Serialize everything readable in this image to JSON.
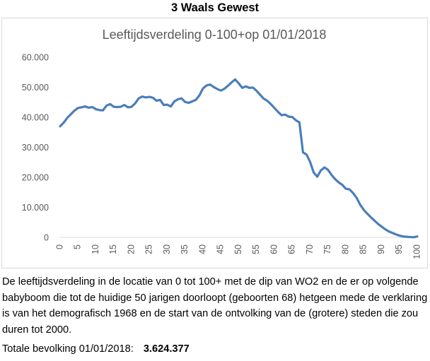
{
  "heading": "3 Waals Gewest",
  "caption": "De leeftijdsverdeling in de locatie van 0 tot 100+ met de dip van WO2 en de er op volgende babyboom die tot de huidige 50 jarigen doorloopt (geboorten 68) hetgeen mede de verklaring is van het demografisch 1968 en de start van de ontvolking van de (grotere) steden die zou duren tot 2000.",
  "total": {
    "label": "Totale bevolking 01/01/2018:",
    "value": "3.624.377"
  },
  "colors": {
    "line": "#4a7ebb",
    "axis_text": "#595959",
    "title_text": "#595959",
    "axis_line": "#d9d9d9"
  },
  "chart_data": {
    "type": "line",
    "title": "Leeftijdsverdeling 0-100+op 01/01/2018",
    "xlabel": "",
    "ylabel": "",
    "grid": false,
    "legend": "none",
    "xlim": [
      0,
      100
    ],
    "ylim": [
      0,
      60000
    ],
    "yticks": [
      0,
      10000,
      20000,
      30000,
      40000,
      50000,
      60000
    ],
    "ytick_labels": [
      "0",
      "10.000",
      "20.000",
      "30.000",
      "40.000",
      "50.000",
      "60.000"
    ],
    "xticks": [
      0,
      5,
      10,
      15,
      20,
      25,
      30,
      35,
      40,
      45,
      50,
      55,
      60,
      65,
      70,
      75,
      80,
      85,
      90,
      95,
      100
    ],
    "xtick_labels": [
      "0",
      "5",
      "10",
      "15",
      "20",
      "25",
      "30",
      "35",
      "40",
      "45",
      "50",
      "55",
      "60",
      "65",
      "70",
      "75",
      "80",
      "85",
      "90",
      "95",
      "100"
    ],
    "series": [
      {
        "values": [
          {
            "x": 0,
            "y": 37000
          },
          {
            "x": 1,
            "y": 38200
          },
          {
            "x": 2,
            "y": 39800
          },
          {
            "x": 3,
            "y": 41000
          },
          {
            "x": 4,
            "y": 42200
          },
          {
            "x": 5,
            "y": 43100
          },
          {
            "x": 6,
            "y": 43300
          },
          {
            "x": 7,
            "y": 43600
          },
          {
            "x": 8,
            "y": 43200
          },
          {
            "x": 9,
            "y": 43400
          },
          {
            "x": 10,
            "y": 42700
          },
          {
            "x": 11,
            "y": 42400
          },
          {
            "x": 12,
            "y": 42300
          },
          {
            "x": 13,
            "y": 43900
          },
          {
            "x": 14,
            "y": 44400
          },
          {
            "x": 15,
            "y": 43500
          },
          {
            "x": 16,
            "y": 43400
          },
          {
            "x": 17,
            "y": 43500
          },
          {
            "x": 18,
            "y": 44100
          },
          {
            "x": 19,
            "y": 43300
          },
          {
            "x": 20,
            "y": 43500
          },
          {
            "x": 21,
            "y": 44600
          },
          {
            "x": 22,
            "y": 46300
          },
          {
            "x": 23,
            "y": 46900
          },
          {
            "x": 24,
            "y": 46600
          },
          {
            "x": 25,
            "y": 46800
          },
          {
            "x": 26,
            "y": 46500
          },
          {
            "x": 27,
            "y": 45500
          },
          {
            "x": 28,
            "y": 45800
          },
          {
            "x": 29,
            "y": 44100
          },
          {
            "x": 30,
            "y": 44200
          },
          {
            "x": 31,
            "y": 43600
          },
          {
            "x": 32,
            "y": 45300
          },
          {
            "x": 33,
            "y": 46000
          },
          {
            "x": 34,
            "y": 46300
          },
          {
            "x": 35,
            "y": 45100
          },
          {
            "x": 36,
            "y": 44800
          },
          {
            "x": 37,
            "y": 45300
          },
          {
            "x": 38,
            "y": 45800
          },
          {
            "x": 39,
            "y": 47300
          },
          {
            "x": 40,
            "y": 49600
          },
          {
            "x": 41,
            "y": 50600
          },
          {
            "x": 42,
            "y": 50900
          },
          {
            "x": 43,
            "y": 50100
          },
          {
            "x": 44,
            "y": 49400
          },
          {
            "x": 45,
            "y": 48900
          },
          {
            "x": 46,
            "y": 49500
          },
          {
            "x": 47,
            "y": 50500
          },
          {
            "x": 48,
            "y": 51600
          },
          {
            "x": 49,
            "y": 52600
          },
          {
            "x": 50,
            "y": 51300
          },
          {
            "x": 51,
            "y": 49800
          },
          {
            "x": 52,
            "y": 50300
          },
          {
            "x": 53,
            "y": 49800
          },
          {
            "x": 54,
            "y": 49900
          },
          {
            "x": 55,
            "y": 48800
          },
          {
            "x": 56,
            "y": 47500
          },
          {
            "x": 57,
            "y": 46200
          },
          {
            "x": 58,
            "y": 45500
          },
          {
            "x": 59,
            "y": 44400
          },
          {
            "x": 60,
            "y": 43100
          },
          {
            "x": 61,
            "y": 41800
          },
          {
            "x": 62,
            "y": 40700
          },
          {
            "x": 63,
            "y": 40900
          },
          {
            "x": 64,
            "y": 40200
          },
          {
            "x": 65,
            "y": 40100
          },
          {
            "x": 66,
            "y": 39000
          },
          {
            "x": 67,
            "y": 38300
          },
          {
            "x": 68,
            "y": 28300
          },
          {
            "x": 69,
            "y": 27600
          },
          {
            "x": 70,
            "y": 25100
          },
          {
            "x": 71,
            "y": 21600
          },
          {
            "x": 72,
            "y": 20200
          },
          {
            "x": 73,
            "y": 22300
          },
          {
            "x": 74,
            "y": 23300
          },
          {
            "x": 75,
            "y": 22500
          },
          {
            "x": 76,
            "y": 20800
          },
          {
            "x": 77,
            "y": 19400
          },
          {
            "x": 78,
            "y": 18300
          },
          {
            "x": 79,
            "y": 17500
          },
          {
            "x": 80,
            "y": 16200
          },
          {
            "x": 81,
            "y": 16000
          },
          {
            "x": 82,
            "y": 14800
          },
          {
            "x": 83,
            "y": 13200
          },
          {
            "x": 84,
            "y": 10900
          },
          {
            "x": 85,
            "y": 9200
          },
          {
            "x": 86,
            "y": 7900
          },
          {
            "x": 87,
            "y": 6700
          },
          {
            "x": 88,
            "y": 5600
          },
          {
            "x": 89,
            "y": 4500
          },
          {
            "x": 90,
            "y": 3600
          },
          {
            "x": 91,
            "y": 2700
          },
          {
            "x": 92,
            "y": 2000
          },
          {
            "x": 93,
            "y": 1500
          },
          {
            "x": 94,
            "y": 1000
          },
          {
            "x": 95,
            "y": 600
          },
          {
            "x": 96,
            "y": 300
          },
          {
            "x": 97,
            "y": 200
          },
          {
            "x": 98,
            "y": 100
          },
          {
            "x": 99,
            "y": 50
          },
          {
            "x": 100,
            "y": 300
          }
        ]
      }
    ]
  }
}
